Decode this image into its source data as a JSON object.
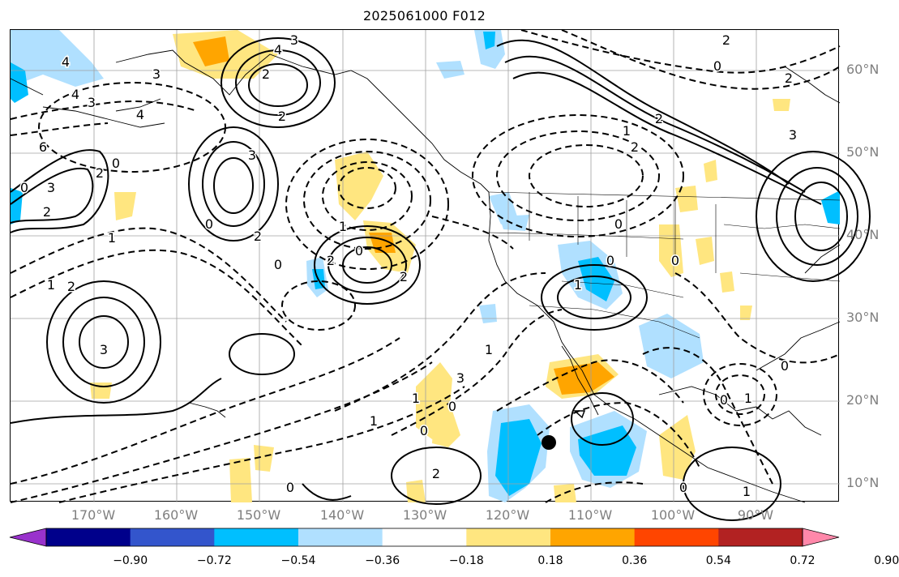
{
  "title": "2025061000 F012",
  "lat_labels": [
    "60°N",
    "50°N",
    "40°N",
    "30°N",
    "20°N",
    "10°N"
  ],
  "lon_labels": [
    "170°W",
    "160°W",
    "150°W",
    "140°W",
    "130°W",
    "120°W",
    "110°W",
    "100°W",
    "90°W"
  ],
  "colorbar": {
    "colors": [
      "#9932cc",
      "#00008b",
      "#3355cc",
      "#00bfff",
      "#b0e0ff",
      "#ffffff",
      "#ffe680",
      "#ffa500",
      "#ff4500",
      "#b22222",
      "#ff88aa"
    ],
    "tick_labels": [
      "−0.90",
      "−0.72",
      "−0.54",
      "−0.36",
      "−0.18",
      "0.18",
      "0.36",
      "0.54",
      "0.72",
      "0.90"
    ]
  },
  "contour_labels": [
    "4",
    "3",
    "4",
    "2",
    "3",
    "2",
    "0",
    "2",
    "0",
    "3",
    "4",
    "3",
    "4",
    "6",
    "3",
    "2",
    "1",
    "0",
    "2",
    "1",
    "2",
    "3",
    "0",
    "2",
    "1",
    "0",
    "2",
    "1",
    "3",
    "0",
    "1",
    "0",
    "2",
    "1",
    "0",
    "1",
    "0",
    "0",
    "1",
    "2",
    "2",
    "0",
    "0",
    "2",
    "2",
    "3",
    "0",
    "1",
    "0",
    "1",
    "0"
  ],
  "marker": "storm-center-dot"
}
